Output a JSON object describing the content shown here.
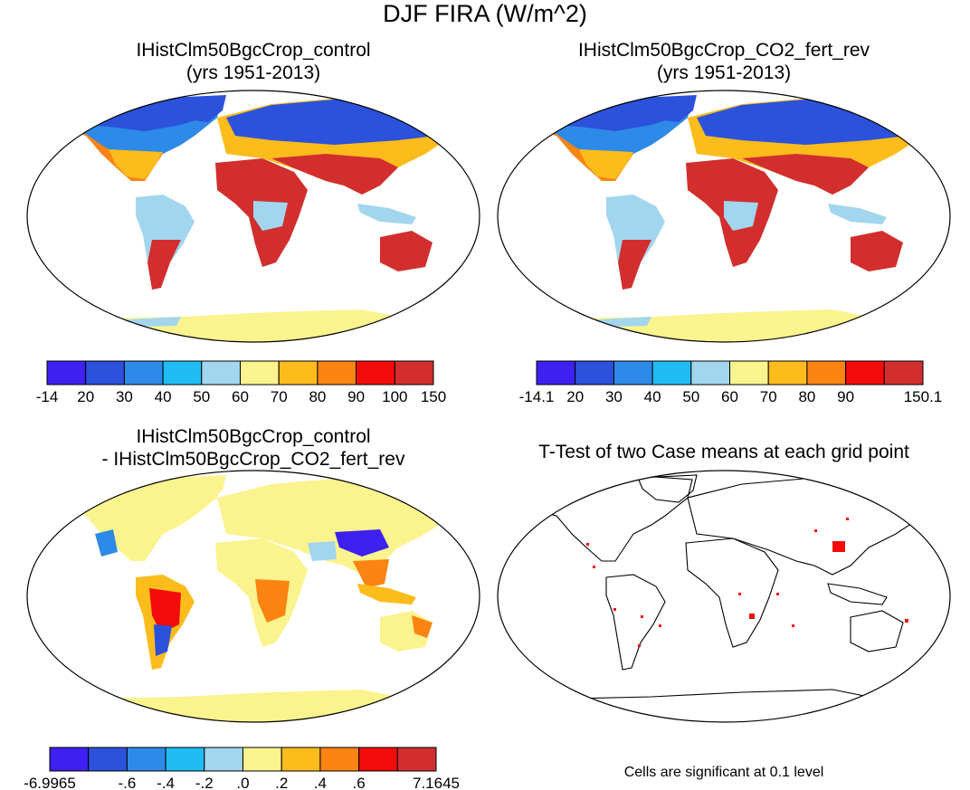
{
  "figure": {
    "title": "DJF FIRA (W/m^2)"
  },
  "panels": [
    {
      "id": "top-left",
      "title_line1": "IHistClm50BgcCrop_control",
      "title_line2": "(yrs 1951-2013)",
      "colorbar": {
        "colors": [
          "#3e20f0",
          "#2c52dc",
          "#2d8ae8",
          "#1fbcf4",
          "#a2d6ee",
          "#fbf38e",
          "#fbbc1c",
          "#fb8412",
          "#f40b0b",
          "#d22e2e"
        ],
        "labels": [
          "-14",
          "20",
          "30",
          "40",
          "50",
          "60",
          "70",
          "80",
          "90",
          "100",
          "150"
        ]
      }
    },
    {
      "id": "top-right",
      "title_line1": "IHistClm50BgcCrop_CO2_fert_rev",
      "title_line2": "(yrs 1951-2013)",
      "colorbar": {
        "colors": [
          "#3e20f0",
          "#2c52dc",
          "#2d8ae8",
          "#1fbcf4",
          "#a2d6ee",
          "#fbf38e",
          "#fbbc1c",
          "#fb8412",
          "#f40b0b",
          "#d22e2e"
        ],
        "labels": [
          "-14.1",
          "20",
          "30",
          "40",
          "50",
          "60",
          "70",
          "80",
          "90",
          "",
          "150.1"
        ]
      }
    },
    {
      "id": "bottom-left",
      "title_line1": "IHistClm50BgcCrop_control",
      "title_line2": "- IHistClm50BgcCrop_CO2_fert_rev",
      "colorbar": {
        "colors": [
          "#3e20f0",
          "#2c52dc",
          "#2d8ae8",
          "#1fbcf4",
          "#a2d6ee",
          "#fbf38e",
          "#fbbc1c",
          "#fb8412",
          "#f40b0b",
          "#d22e2e"
        ],
        "labels": [
          "-6.9965",
          "",
          "-.6",
          "-.4",
          "-.2",
          ".0",
          ".2",
          ".4",
          ".6",
          "",
          "7.1645"
        ]
      }
    },
    {
      "id": "bottom-right",
      "title_line1": "T-Test of two Case means at each grid point",
      "note": "Cells are significant at 0.1 level"
    }
  ]
}
